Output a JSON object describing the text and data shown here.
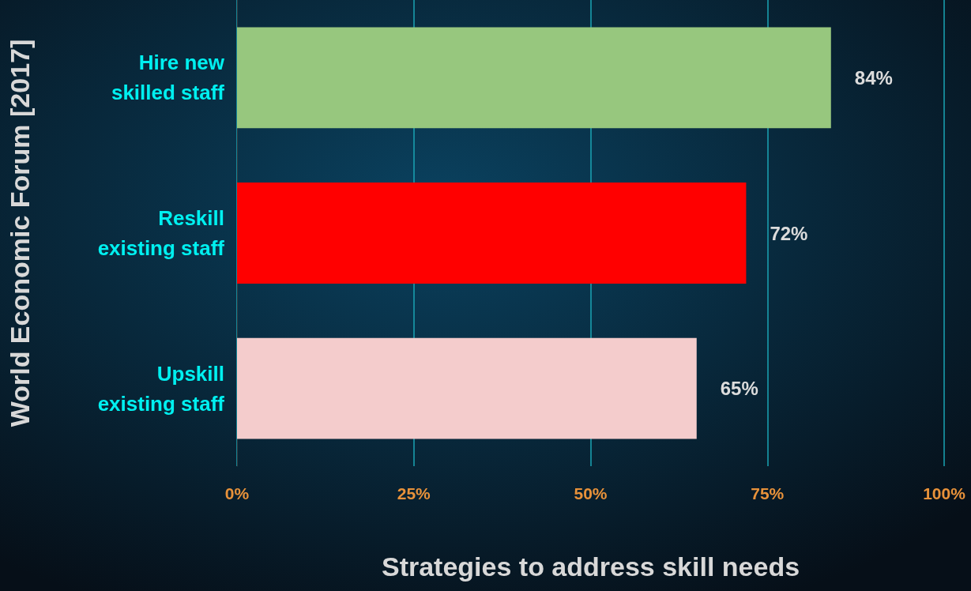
{
  "chart_data": {
    "type": "bar",
    "orientation": "horizontal",
    "xlabel": "Strategies to address skill needs",
    "ylabel": "World Economic Forum [2017]",
    "categories": [
      "Hire new\nskilled staff",
      "Reskill\nexisting staff",
      "Upskill\nexisting staff"
    ],
    "values": [
      84,
      72,
      65
    ],
    "colors": [
      "#97c77e",
      "#ff0000",
      "#f4cccc"
    ],
    "value_labels": [
      "84%",
      "72%",
      "65%"
    ],
    "xlim": [
      0,
      100
    ],
    "xticks": [
      {
        "value": 0,
        "label": "0%"
      },
      {
        "value": 25,
        "label": "25%"
      },
      {
        "value": 50,
        "label": "50%"
      },
      {
        "value": 75,
        "label": "75%"
      },
      {
        "value": 100,
        "label": "100%"
      }
    ],
    "grid": "x"
  }
}
